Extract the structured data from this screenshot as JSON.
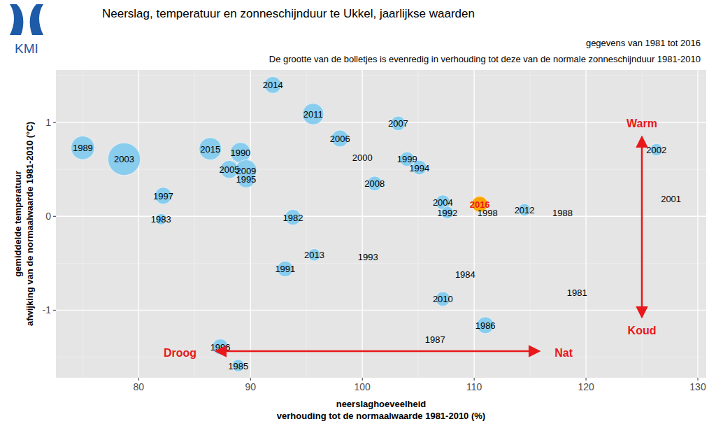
{
  "chart_data": {
    "type": "scatter",
    "logo": "KMI",
    "title": "Neerslag, temperatuur en zonneschijnduur te Ukkel, jaarlijkse waarden",
    "subtitle": [
      "gegevens van 1981 tot 2016",
      "De grootte van de bolletjes is evenredig in verhouding tot deze van de normale zonneschijnduur 1981-2010"
    ],
    "xlabel": [
      "neerslaghoeveelheid",
      "verhouding tot de normaalwaarde 1981-2010 (%)"
    ],
    "ylabel": [
      "gemiddelde temperatuur",
      "afwijking van de normaalwaarde 1981-2010 (°C)"
    ],
    "labels": [
      "1989",
      "2003",
      "2015",
      "1990",
      "2005",
      "2009",
      "1995",
      "1997",
      "1983",
      "2014",
      "2011",
      "2006",
      "2007",
      "2000",
      "1999",
      "1994",
      "2008",
      "1982",
      "2004",
      "1992",
      "2016",
      "1998",
      "2012",
      "1988",
      "2002",
      "2001",
      "2013",
      "1993",
      "1991",
      "1984",
      "2010",
      "1981",
      "1986",
      "1987",
      "1996",
      "1985"
    ],
    "x": [
      75.0,
      78.7,
      86.4,
      89.1,
      88.1,
      89.6,
      89.6,
      82.2,
      82.0,
      92.0,
      95.6,
      98.0,
      103.2,
      100.0,
      104.0,
      105.1,
      101.1,
      93.8,
      107.2,
      107.6,
      110.5,
      111.2,
      114.5,
      117.9,
      126.3,
      127.6,
      95.7,
      100.5,
      93.1,
      109.2,
      107.2,
      119.2,
      111.0,
      106.5,
      87.3,
      88.9
    ],
    "values": [
      0.73,
      0.61,
      0.72,
      0.68,
      0.5,
      0.49,
      0.4,
      0.22,
      -0.03,
      1.4,
      1.09,
      0.83,
      0.99,
      0.63,
      0.61,
      0.52,
      0.35,
      -0.01,
      0.15,
      0.04,
      0.13,
      0.04,
      0.07,
      0.04,
      0.71,
      0.19,
      -0.41,
      -0.43,
      -0.56,
      -0.62,
      -0.88,
      -0.81,
      -1.16,
      -1.31,
      -1.39,
      -1.59
    ],
    "size": [
      106,
      114,
      105,
      103,
      101,
      104,
      101,
      100,
      95,
      100,
      104,
      100,
      98,
      85,
      98,
      98,
      98,
      99,
      98,
      96,
      99,
      85,
      96,
      85,
      96,
      85,
      96,
      89,
      99,
      85,
      98,
      85,
      100,
      85,
      99,
      96
    ],
    "color": "#89cdee",
    "colors": [
      "#89cdee",
      "#89cdee",
      "#89cdee",
      "#89cdee",
      "#89cdee",
      "#89cdee",
      "#89cdee",
      "#89cdee",
      "#89cdee",
      "#89cdee",
      "#89cdee",
      "#89cdee",
      "#89cdee",
      "#89cdee",
      "#89cdee",
      "#89cdee",
      "#89cdee",
      "#89cdee",
      "#89cdee",
      "#89cdee",
      "#ffa500",
      "#89cdee",
      "#89cdee",
      "#89cdee",
      "#89cdee",
      "#89cdee",
      "#89cdee",
      "#89cdee",
      "#89cdee",
      "#89cdee",
      "#89cdee",
      "#89cdee",
      "#89cdee",
      "#89cdee",
      "#89cdee",
      "#89cdee"
    ],
    "marker": "circle",
    "xlim": [
      72.6,
      130.75
    ],
    "ylim": [
      -1.72,
      1.56
    ],
    "xticks": [
      80,
      90,
      100,
      110,
      120,
      130
    ],
    "yticks": [
      -1,
      0,
      1
    ],
    "grid": true,
    "annotations": [
      {
        "text": "Warm",
        "x": 125,
        "y": 0.99
      },
      {
        "text": "Koud",
        "x": 125,
        "y": -1.21
      },
      {
        "text": "Droog",
        "x": 83.7,
        "y": -1.455
      },
      {
        "text": "Nat",
        "x": 118.0,
        "y": -1.455
      }
    ]
  }
}
